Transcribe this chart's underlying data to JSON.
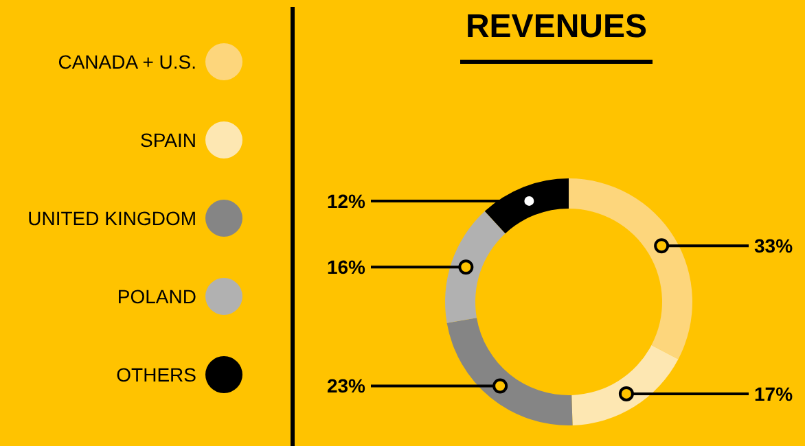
{
  "chart_data": {
    "type": "donut",
    "title": "REVENUES",
    "categories": [
      "CANADA + U.S.",
      "SPAIN",
      "UNITED KINGDOM",
      "POLAND",
      "OTHERS"
    ],
    "values": [
      33,
      17,
      23,
      16,
      12
    ],
    "colors": [
      "#fdd67c",
      "#fde7b2",
      "#858585",
      "#b1b1b1",
      "#000000"
    ],
    "legend": "left",
    "value_labels": [
      "33%",
      "17%",
      "23%",
      "16%",
      "12%"
    ]
  }
}
